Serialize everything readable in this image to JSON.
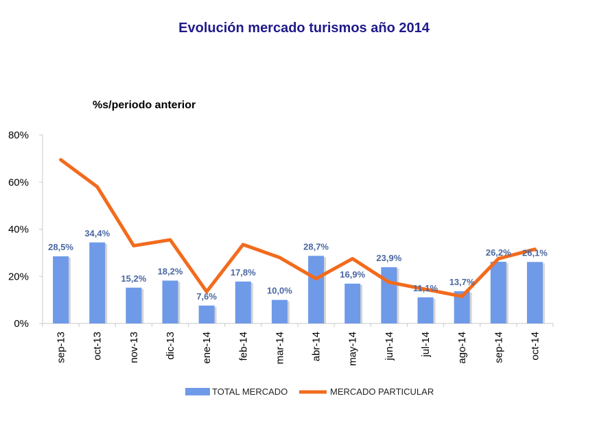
{
  "page": {
    "title": "Evolución mercado turismos año 2014",
    "subtitle": "%s/periodo anterior"
  },
  "colors": {
    "bar": "#6f9ae8",
    "line": "#f26b1d",
    "title": "#1f1a8a",
    "data_label": "#4a67a2",
    "axis": "#c8c8c8"
  },
  "chart_data": {
    "type": "bar",
    "title": "Evolución mercado turismos año 2014",
    "subtitle": "%s/periodo anterior",
    "categories": [
      "sep-13",
      "oct-13",
      "nov-13",
      "dic-13",
      "ene-14",
      "feb-14",
      "mar-14",
      "abr-14",
      "may-14",
      "jun-14",
      "jul-14",
      "ago-14",
      "sep-14",
      "oct-14"
    ],
    "ylim": [
      0,
      80
    ],
    "yticks": [
      0,
      20,
      40,
      60,
      80
    ],
    "ytick_labels": [
      "0%",
      "20%",
      "40%",
      "60%",
      "80%"
    ],
    "grid": false,
    "legend_position": "bottom",
    "series": [
      {
        "name": "TOTAL MERCADO",
        "type": "bar",
        "values": [
          28.5,
          34.4,
          15.2,
          18.2,
          7.6,
          17.8,
          10.0,
          28.7,
          16.9,
          23.9,
          11.1,
          13.7,
          26.2,
          26.1
        ],
        "labels": [
          "28,5%",
          "34,4%",
          "15,2%",
          "18,2%",
          "7,6%",
          "17,8%",
          "10,0%",
          "28,7%",
          "16,9%",
          "23,9%",
          "11,1%",
          "13,7%",
          "26,2%",
          "26,1%"
        ]
      },
      {
        "name": "MERCADO PARTICULAR",
        "type": "line",
        "values": [
          69.5,
          58,
          33,
          35.5,
          13.5,
          33.5,
          28,
          19,
          27.5,
          17.5,
          14.5,
          11.5,
          27.5,
          31.5
        ]
      }
    ]
  }
}
